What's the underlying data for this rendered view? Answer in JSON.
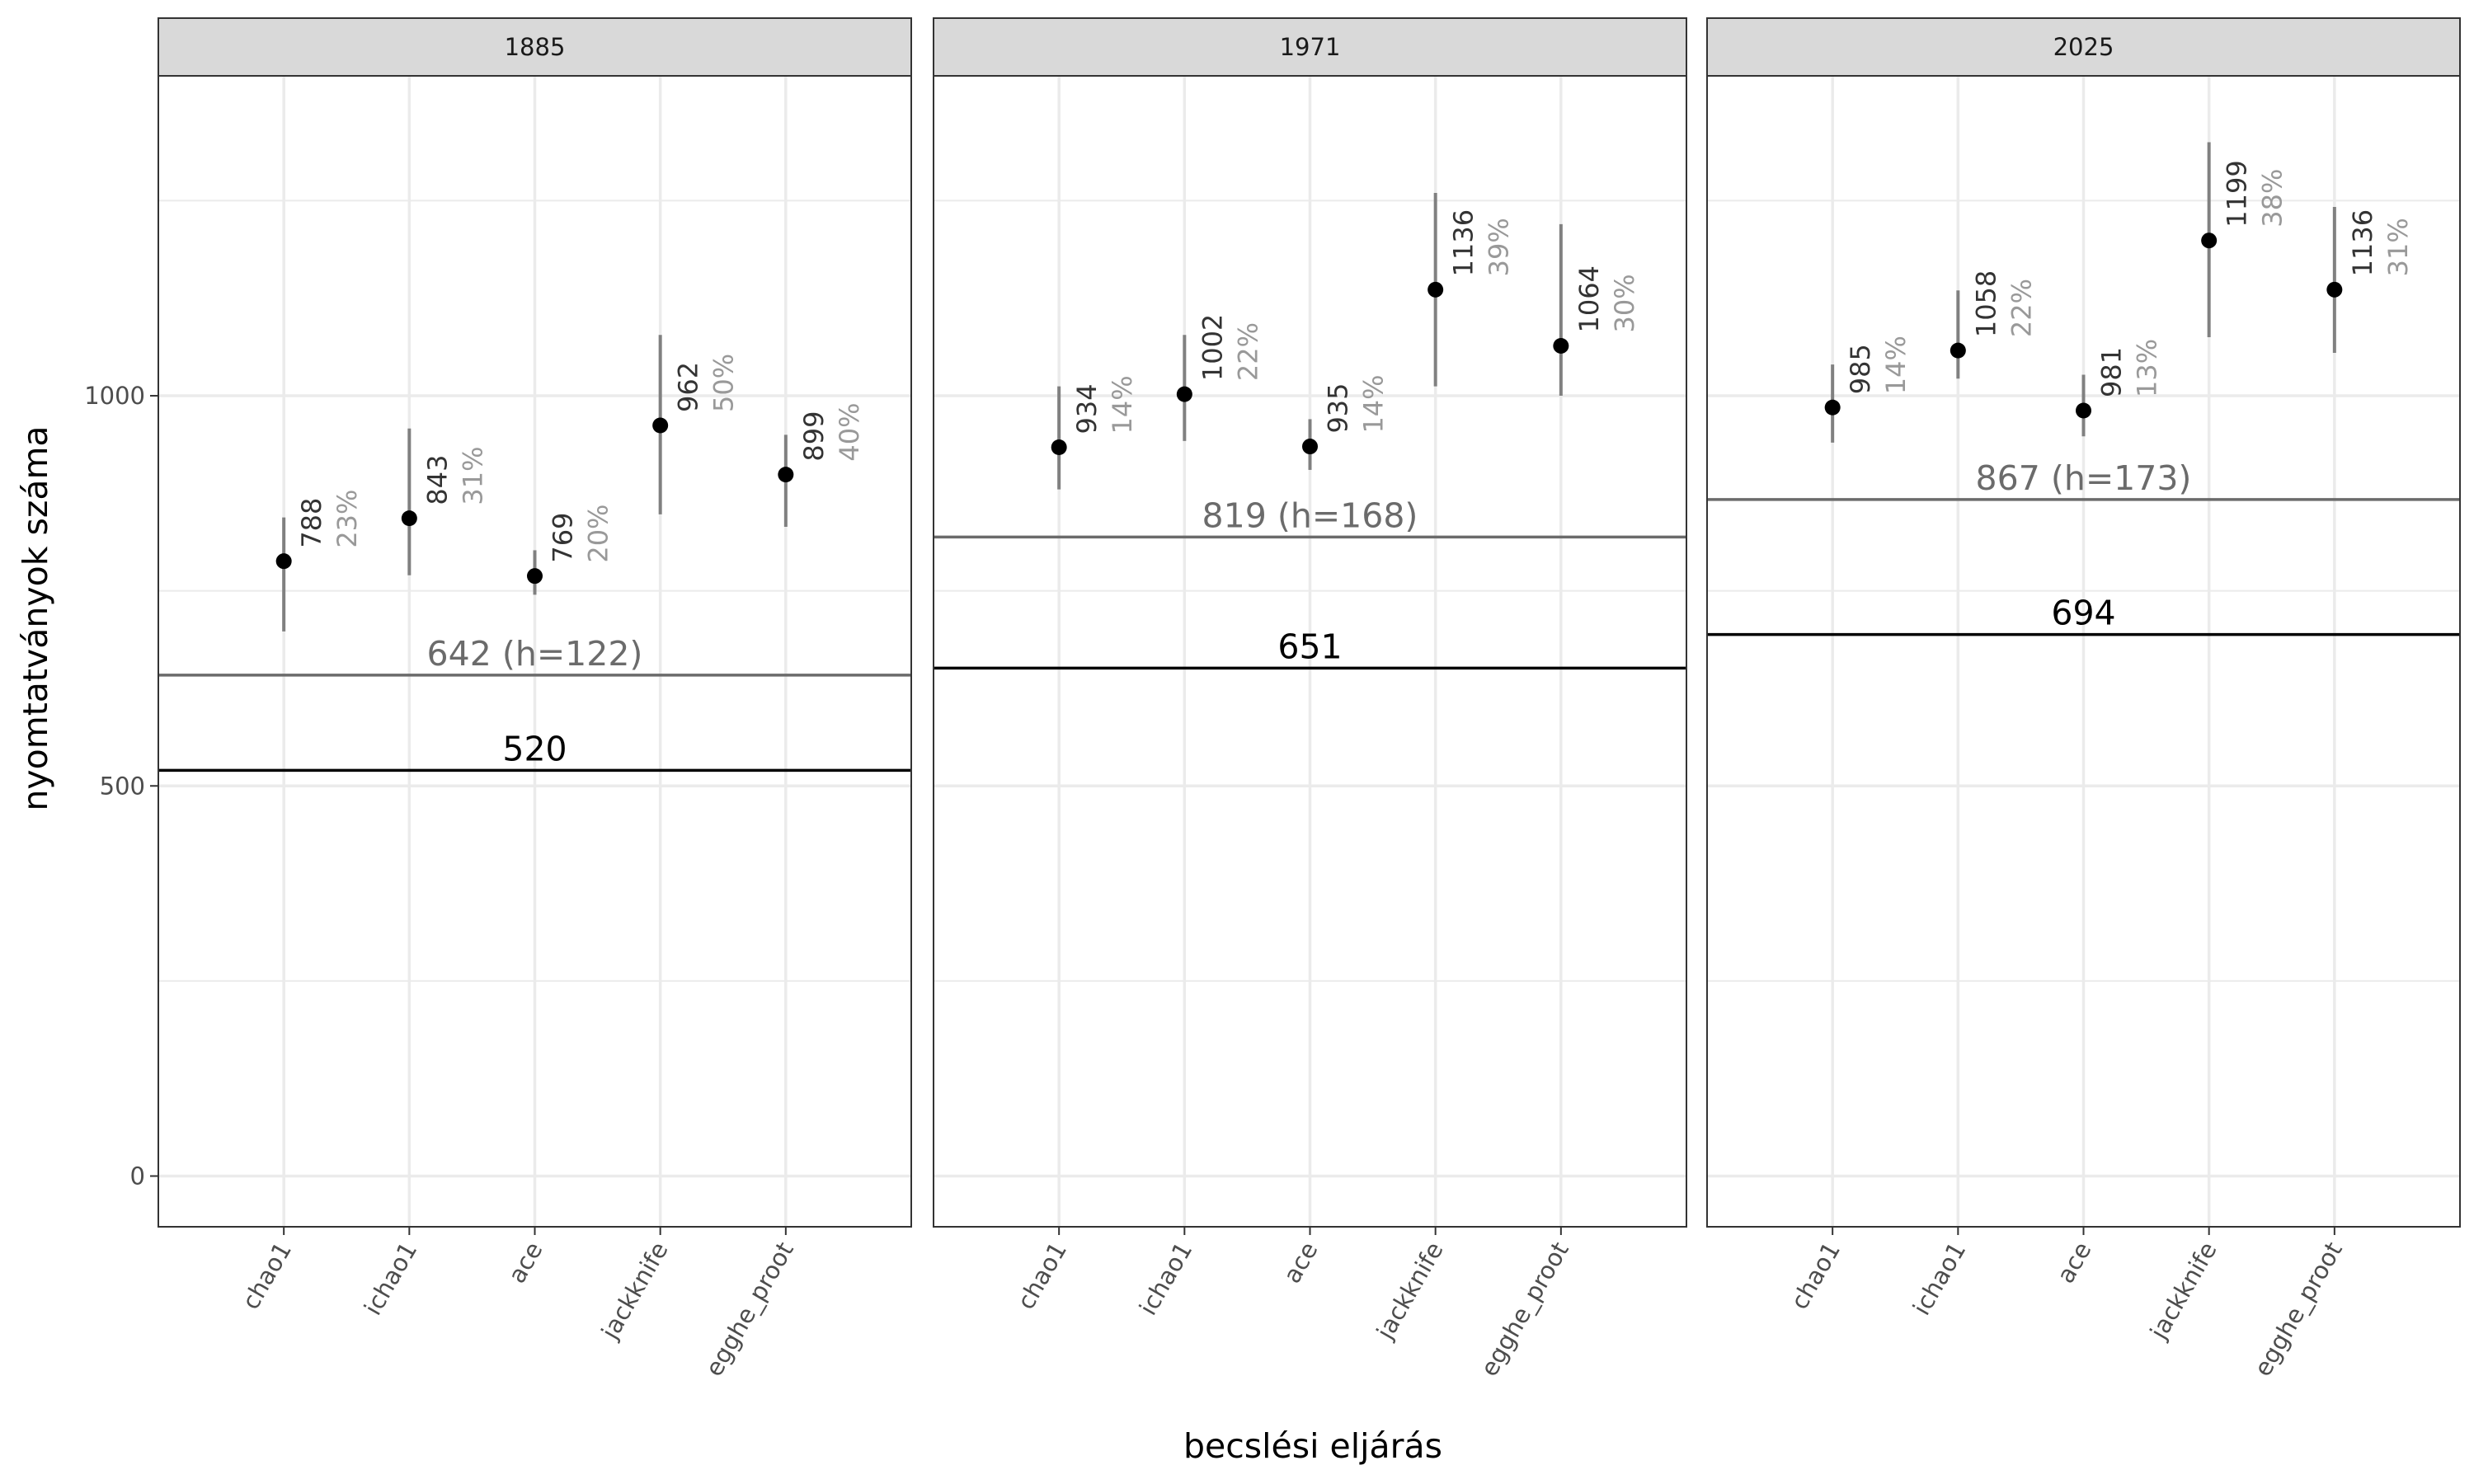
{
  "chart_data": {
    "type": "scatter",
    "variant": "faceted point-range with horizontal reference lines",
    "xlabel": "becslési eljárás",
    "ylabel": "nyomtatványok száma",
    "categories": [
      "chao1",
      "ichao1",
      "ace",
      "jackknife",
      "egghe_proot"
    ],
    "ylim": [
      -65,
      1410
    ],
    "yticks": [
      0,
      500,
      1000
    ],
    "ytick_labels": [
      "0",
      "500",
      "1000"
    ],
    "grid": true,
    "colors": {
      "point": "#000000",
      "errorbar": "#808080",
      "value_label": "#333333",
      "percent_label": "#999999",
      "observed_line": "#000000",
      "h_line": "#6b6b6b",
      "strip_bg": "#d9d9d9",
      "grid": "#ebebeb"
    },
    "facets": [
      {
        "label": "1885",
        "observed": {
          "value": 520,
          "label": "520"
        },
        "h_line": {
          "value": 642,
          "label": "642 (h=122)"
        },
        "points": [
          {
            "x": "chao1",
            "y": 788,
            "low": 698,
            "high": 844,
            "value_label": "788",
            "pct_label": "23%"
          },
          {
            "x": "ichao1",
            "y": 843,
            "low": 770,
            "high": 958,
            "value_label": "843",
            "pct_label": "31%"
          },
          {
            "x": "ace",
            "y": 769,
            "low": 745,
            "high": 802,
            "value_label": "769",
            "pct_label": "20%"
          },
          {
            "x": "jackknife",
            "y": 962,
            "low": 848,
            "high": 1078,
            "value_label": "962",
            "pct_label": "50%"
          },
          {
            "x": "egghe_proot",
            "y": 899,
            "low": 832,
            "high": 950,
            "value_label": "899",
            "pct_label": "40%"
          }
        ]
      },
      {
        "label": "1971",
        "observed": {
          "value": 651,
          "label": "651"
        },
        "h_line": {
          "value": 819,
          "label": "819 (h=168)"
        },
        "points": [
          {
            "x": "chao1",
            "y": 934,
            "low": 880,
            "high": 1012,
            "value_label": "934",
            "pct_label": "14%"
          },
          {
            "x": "ichao1",
            "y": 1002,
            "low": 942,
            "high": 1078,
            "value_label": "1002",
            "pct_label": "22%"
          },
          {
            "x": "ace",
            "y": 935,
            "low": 905,
            "high": 970,
            "value_label": "935",
            "pct_label": "14%"
          },
          {
            "x": "jackknife",
            "y": 1136,
            "low": 1012,
            "high": 1260,
            "value_label": "1136",
            "pct_label": "39%"
          },
          {
            "x": "egghe_proot",
            "y": 1064,
            "low": 1000,
            "high": 1220,
            "value_label": "1064",
            "pct_label": "30%"
          }
        ]
      },
      {
        "label": "2025",
        "observed": {
          "value": 694,
          "label": "694"
        },
        "h_line": {
          "value": 867,
          "label": "867 (h=173)"
        },
        "points": [
          {
            "x": "chao1",
            "y": 985,
            "low": 940,
            "high": 1040,
            "value_label": "985",
            "pct_label": "14%"
          },
          {
            "x": "ichao1",
            "y": 1058,
            "low": 1022,
            "high": 1135,
            "value_label": "1058",
            "pct_label": "22%"
          },
          {
            "x": "ace",
            "y": 981,
            "low": 948,
            "high": 1027,
            "value_label": "981",
            "pct_label": "13%"
          },
          {
            "x": "jackknife",
            "y": 1199,
            "low": 1075,
            "high": 1325,
            "value_label": "1199",
            "pct_label": "38%"
          },
          {
            "x": "egghe_proot",
            "y": 1136,
            "low": 1055,
            "high": 1242,
            "value_label": "1136",
            "pct_label": "31%"
          }
        ]
      }
    ]
  }
}
